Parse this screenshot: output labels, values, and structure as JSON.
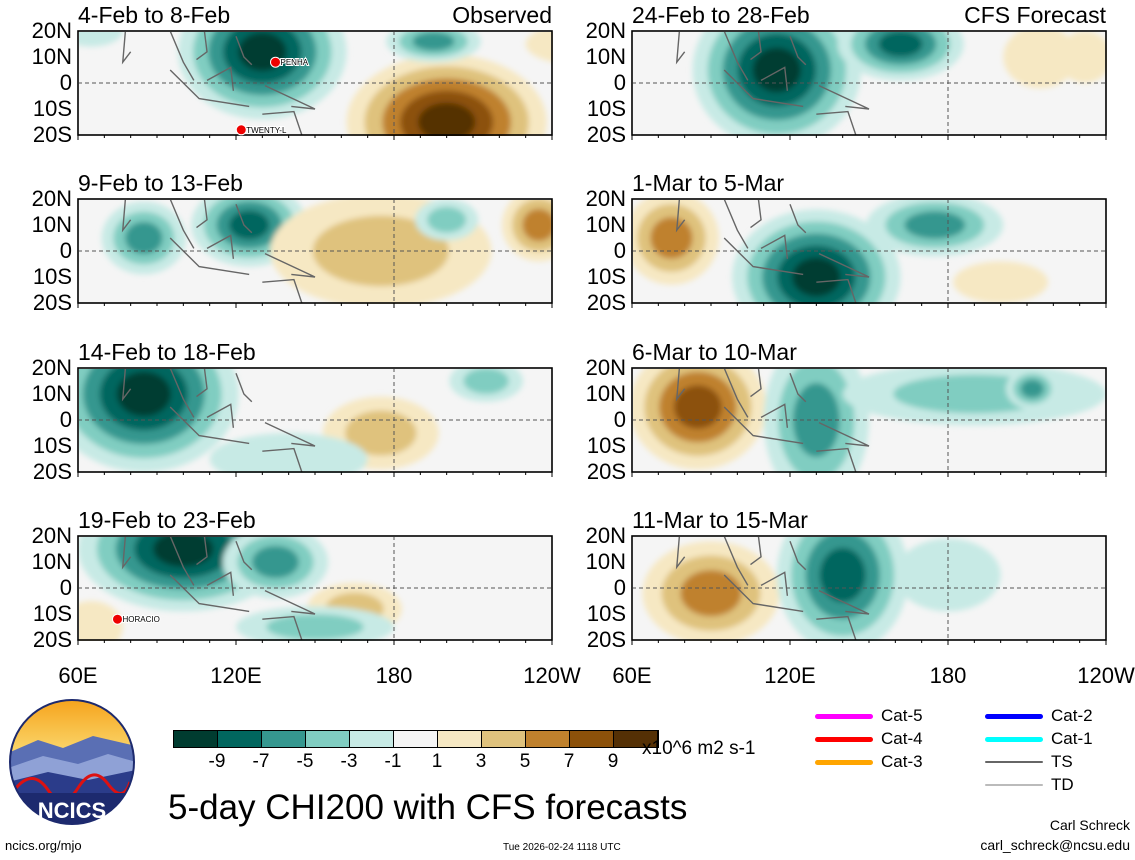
{
  "chart_data": {
    "type": "heatmap",
    "title": "5-day CHI200 with CFS forecasts",
    "units": "x10^6 m2 s-1",
    "lat_ticks": [
      "20N",
      "10N",
      "0",
      "10S",
      "20S"
    ],
    "lon_ticks": [
      "60E",
      "120E",
      "180",
      "120W"
    ],
    "xlim_lon": [
      60,
      240
    ],
    "ylim_lat": [
      -20,
      20
    ],
    "colorbar": {
      "ticks": [
        "-9",
        "-7",
        "-5",
        "-3",
        "-1",
        "1",
        "3",
        "5",
        "7",
        "9"
      ],
      "colors": [
        "#003c30",
        "#01665e",
        "#35978f",
        "#80cdc1",
        "#c7eae5",
        "#f5f5f5",
        "#f6e8c3",
        "#dfc27d",
        "#bf812d",
        "#8c510a",
        "#543005"
      ]
    },
    "panels": [
      {
        "title": "4-Feb to 8-Feb",
        "label": "Observed",
        "storms": [
          "PENHA",
          "TWENTY-L"
        ]
      },
      {
        "title": "24-Feb to 28-Feb",
        "label": "CFS Forecast",
        "storms": []
      },
      {
        "title": "9-Feb to 13-Feb",
        "label": "",
        "storms": []
      },
      {
        "title": "1-Mar to 5-Mar",
        "label": "",
        "storms": []
      },
      {
        "title": "14-Feb to 18-Feb",
        "label": "",
        "storms": []
      },
      {
        "title": "6-Mar to 10-Mar",
        "label": "",
        "storms": []
      },
      {
        "title": "19-Feb to 23-Feb",
        "label": "",
        "storms": [
          "HORACIO"
        ]
      },
      {
        "title": "11-Mar to 15-Mar",
        "label": "",
        "storms": []
      }
    ],
    "legend": [
      {
        "label": "Cat-5",
        "color": "#ff00ff"
      },
      {
        "label": "Cat-4",
        "color": "#ff0000"
      },
      {
        "label": "Cat-3",
        "color": "#ffa500"
      },
      {
        "label": "Cat-2",
        "color": "#0000ff"
      },
      {
        "label": "Cat-1",
        "color": "#00ffff"
      },
      {
        "label": "TS",
        "color": "#666666"
      },
      {
        "label": "TD",
        "color": "#bbbbbb"
      }
    ]
  },
  "logo": "NCICS",
  "footer": {
    "url": "ncics.org/mjo",
    "timestamp": "Tue 2026-02-24 1118 UTC",
    "author": "Carl Schreck",
    "email": "carl_schreck@ncsu.edu"
  }
}
